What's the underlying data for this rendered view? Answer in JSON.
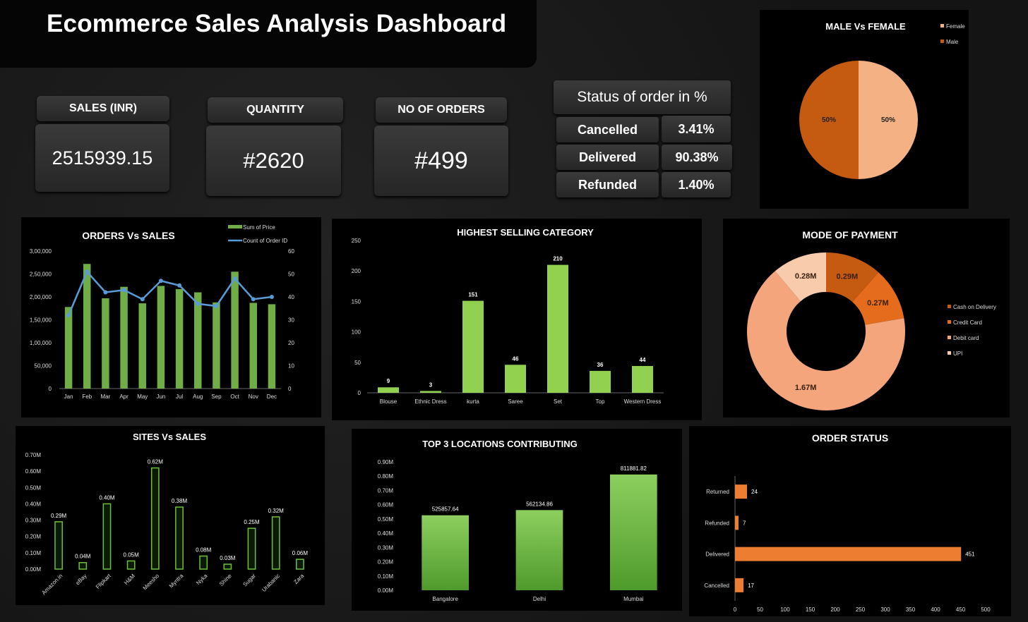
{
  "dashboard_title": "Ecommerce Sales Analysis Dashboard",
  "kpis": {
    "sales_label": "SALES (INR)",
    "sales_value": "2515939.15",
    "quantity_label": "QUANTITY",
    "quantity_value": "#2620",
    "orders_label": "NO OF ORDERS",
    "orders_value": "#499"
  },
  "status_table": {
    "title": "Status of order in %",
    "rows": [
      {
        "label": "Cancelled",
        "value": "3.41%"
      },
      {
        "label": "Delivered",
        "value": "90.38%"
      },
      {
        "label": "Refunded",
        "value": "1.40%"
      }
    ]
  },
  "colors": {
    "green": "#8ccf4d",
    "blue": "#5b9bd5",
    "orange": "#ed7d31"
  },
  "chart_data": [
    {
      "id": "gender",
      "type": "pie",
      "title": "MALE  Vs FEMALE",
      "legend": [
        "Female",
        "Male"
      ],
      "values": [
        50,
        50
      ],
      "labels": [
        "50%",
        "50%"
      ],
      "colors": [
        "#f4b183",
        "#c55a11"
      ]
    },
    {
      "id": "orders_sales",
      "type": "bar+line",
      "title": "ORDERS Vs SALES",
      "categories": [
        "Jan",
        "Feb",
        "Mar",
        "Apr",
        "May",
        "Jun",
        "Jul",
        "Aug",
        "Sep",
        "Oct",
        "Nov",
        "Dec"
      ],
      "series": [
        {
          "name": "Sum of Price",
          "type": "bar",
          "axis": "left",
          "values": [
            178000,
            272000,
            197000,
            222000,
            186000,
            224000,
            217000,
            210000,
            188000,
            255000,
            187000,
            184000
          ]
        },
        {
          "name": "Count of Order ID",
          "type": "line",
          "axis": "right",
          "values": [
            32,
            51,
            42,
            43,
            39,
            47,
            45,
            37,
            36,
            48,
            39,
            40
          ]
        }
      ],
      "y_left_ticks": [
        "0",
        "50,000",
        "1,00,000",
        "1,50,000",
        "2,00,000",
        "2,50,000",
        "3,00,000"
      ],
      "y_right_ticks": [
        "0",
        "10",
        "20",
        "30",
        "40",
        "50",
        "60"
      ],
      "ylim_left": [
        0,
        300000
      ],
      "ylim_right": [
        0,
        60
      ]
    },
    {
      "id": "category",
      "type": "bar",
      "title": "HIGHEST SELLING CATEGORY",
      "categories": [
        "Blouse",
        "Ethnic Dress",
        "kurta",
        "Saree",
        "Set",
        "Top",
        "Western Dress"
      ],
      "values": [
        9,
        3,
        151,
        46,
        210,
        36,
        44
      ],
      "y_ticks": [
        "0",
        "50",
        "100",
        "150",
        "200",
        "250"
      ],
      "ylim": [
        0,
        250
      ]
    },
    {
      "id": "payment",
      "type": "donut",
      "title": "MODE OF PAYMENT",
      "categories": [
        "Cash on Delivery",
        "Credit Card",
        "Debit card",
        "UPI"
      ],
      "values": [
        0.29,
        0.27,
        1.67,
        0.28
      ],
      "labels": [
        "0.29M",
        "0.27M",
        "1.67M",
        "0.28M"
      ],
      "colors": [
        "#c55a11",
        "#e56c1d",
        "#f4a57c",
        "#f8cbad"
      ]
    },
    {
      "id": "sites",
      "type": "bar",
      "title": "SITES Vs SALES",
      "categories": [
        "Amazon.in",
        "eBay",
        "Flipkart",
        "H&M",
        "Meesho",
        "Myntra",
        "Nyka",
        "Shine",
        "Sugar",
        "Urabanic",
        "Zara"
      ],
      "values": [
        0.29,
        0.04,
        0.4,
        0.05,
        0.62,
        0.38,
        0.08,
        0.03,
        0.25,
        0.32,
        0.06
      ],
      "labels": [
        "0.29M",
        "0.04M",
        "0.40M",
        "0.05M",
        "0.62M",
        "0.38M",
        "0.08M",
        "0.03M",
        "0.25M",
        "0.32M",
        "0.06M"
      ],
      "y_ticks": [
        "0.00M",
        "0.10M",
        "0.20M",
        "0.30M",
        "0.40M",
        "0.50M",
        "0.60M",
        "0.70M"
      ],
      "ylim": [
        0,
        0.7
      ]
    },
    {
      "id": "locations",
      "type": "bar",
      "title": "TOP 3 LOCATIONS CONTRIBUTING",
      "categories": [
        "Bangalore",
        "Delhi",
        "Mumbai"
      ],
      "values": [
        525857.64,
        562134.86,
        811881.82
      ],
      "labels": [
        "525857.64",
        "562134.86",
        "811881.82"
      ],
      "y_ticks": [
        "0.00M",
        "0.10M",
        "0.20M",
        "0.30M",
        "0.40M",
        "0.50M",
        "0.60M",
        "0.70M",
        "0.80M",
        "0.90M"
      ],
      "ylim": [
        0,
        900000
      ]
    },
    {
      "id": "order_status",
      "type": "hbar",
      "title": "ORDER STATUS",
      "categories": [
        "Returned",
        "Refunded",
        "Delivered",
        "Cancelled"
      ],
      "values": [
        24,
        7,
        451,
        17
      ],
      "x_ticks": [
        "0",
        "50",
        "100",
        "150",
        "200",
        "250",
        "300",
        "350",
        "400",
        "450",
        "500"
      ],
      "xlim": [
        0,
        500
      ]
    }
  ]
}
